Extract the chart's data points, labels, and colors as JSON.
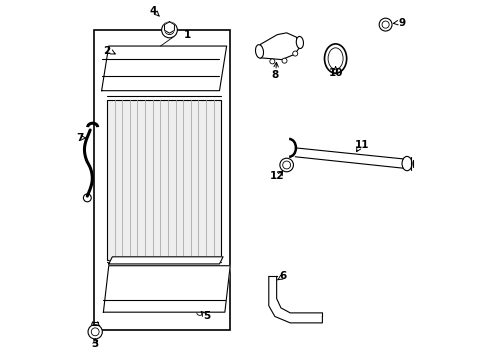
{
  "bg_color": "#ffffff",
  "line_color": "#000000",
  "label_color": "#000000"
}
